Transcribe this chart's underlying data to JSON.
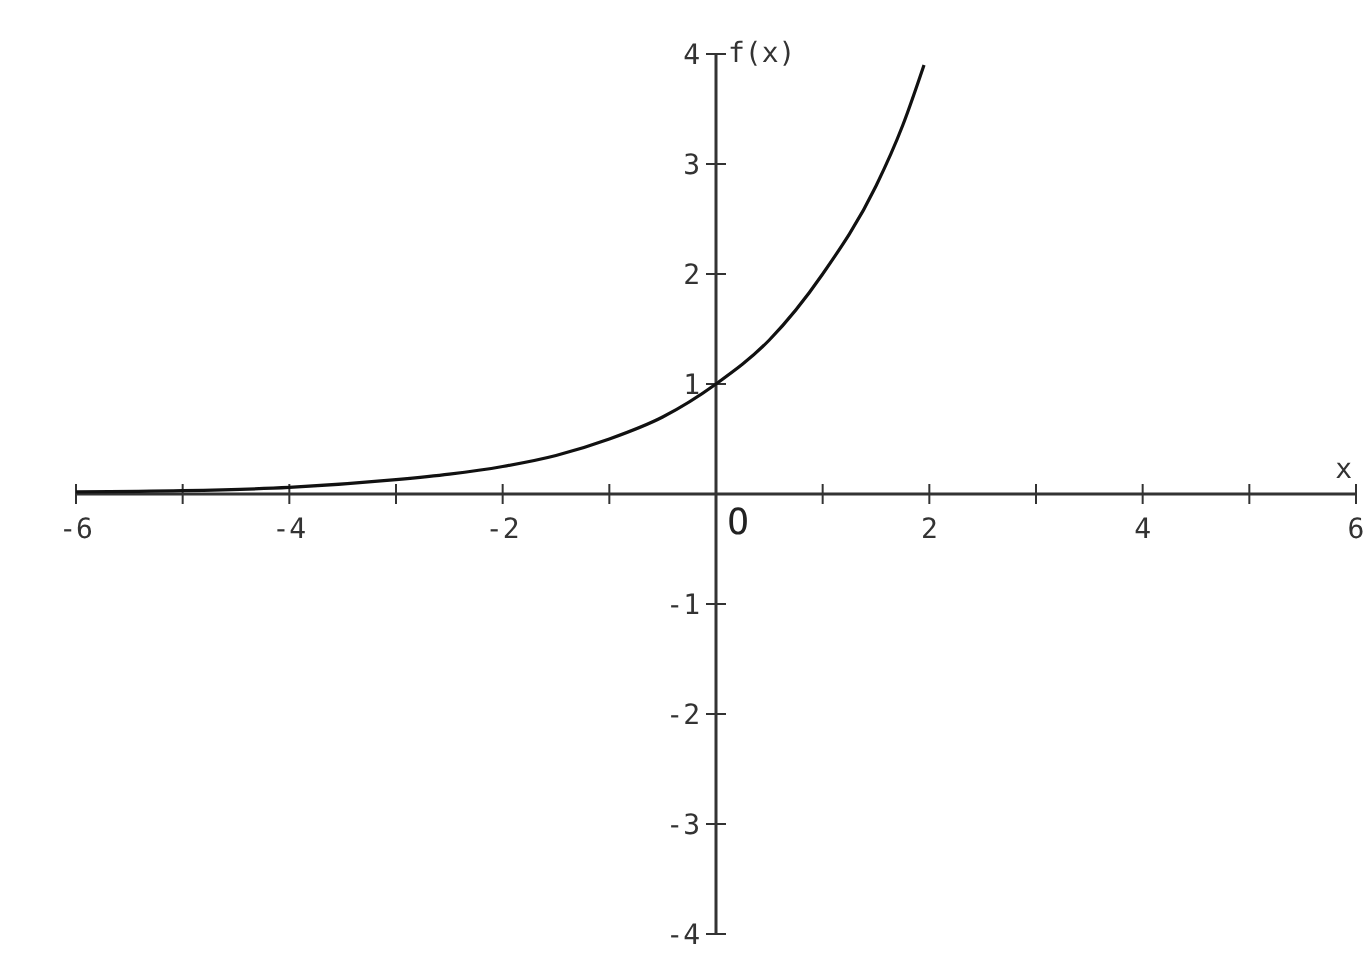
{
  "chart_data": {
    "type": "line",
    "xlabel": "x",
    "ylabel": "f(x)",
    "xlim": [
      -6,
      6
    ],
    "ylim": [
      -4,
      4
    ],
    "xticks": [
      -6,
      {
        "value": -5,
        "label": null
      },
      -4,
      {
        "value": -3,
        "label": null
      },
      -2,
      {
        "value": -1,
        "label": null
      },
      {
        "value": 0,
        "label": null
      },
      {
        "value": 1,
        "label": null
      },
      2,
      {
        "value": 3,
        "label": null
      },
      4,
      {
        "value": 5,
        "label": null
      },
      6
    ],
    "yticks": [
      -4,
      -3,
      -2,
      -1,
      1,
      2,
      3,
      4
    ],
    "x": [
      -6,
      -5,
      -4,
      -3,
      -2.5,
      -2,
      -1.5,
      -1,
      -0.5,
      0,
      0.5,
      1,
      1.5,
      1.75,
      1.95
    ],
    "series": [
      {
        "color": "#111111",
        "values": [
          0.02,
          0.03,
          0.06,
          0.13,
          0.18,
          0.25,
          0.35,
          0.5,
          0.7,
          1,
          1.4,
          2,
          2.8,
          3.35,
          3.9
        ]
      }
    ],
    "annotations": [
      "O"
    ],
    "grid": false,
    "marker": "none",
    "line_style": "solid"
  }
}
